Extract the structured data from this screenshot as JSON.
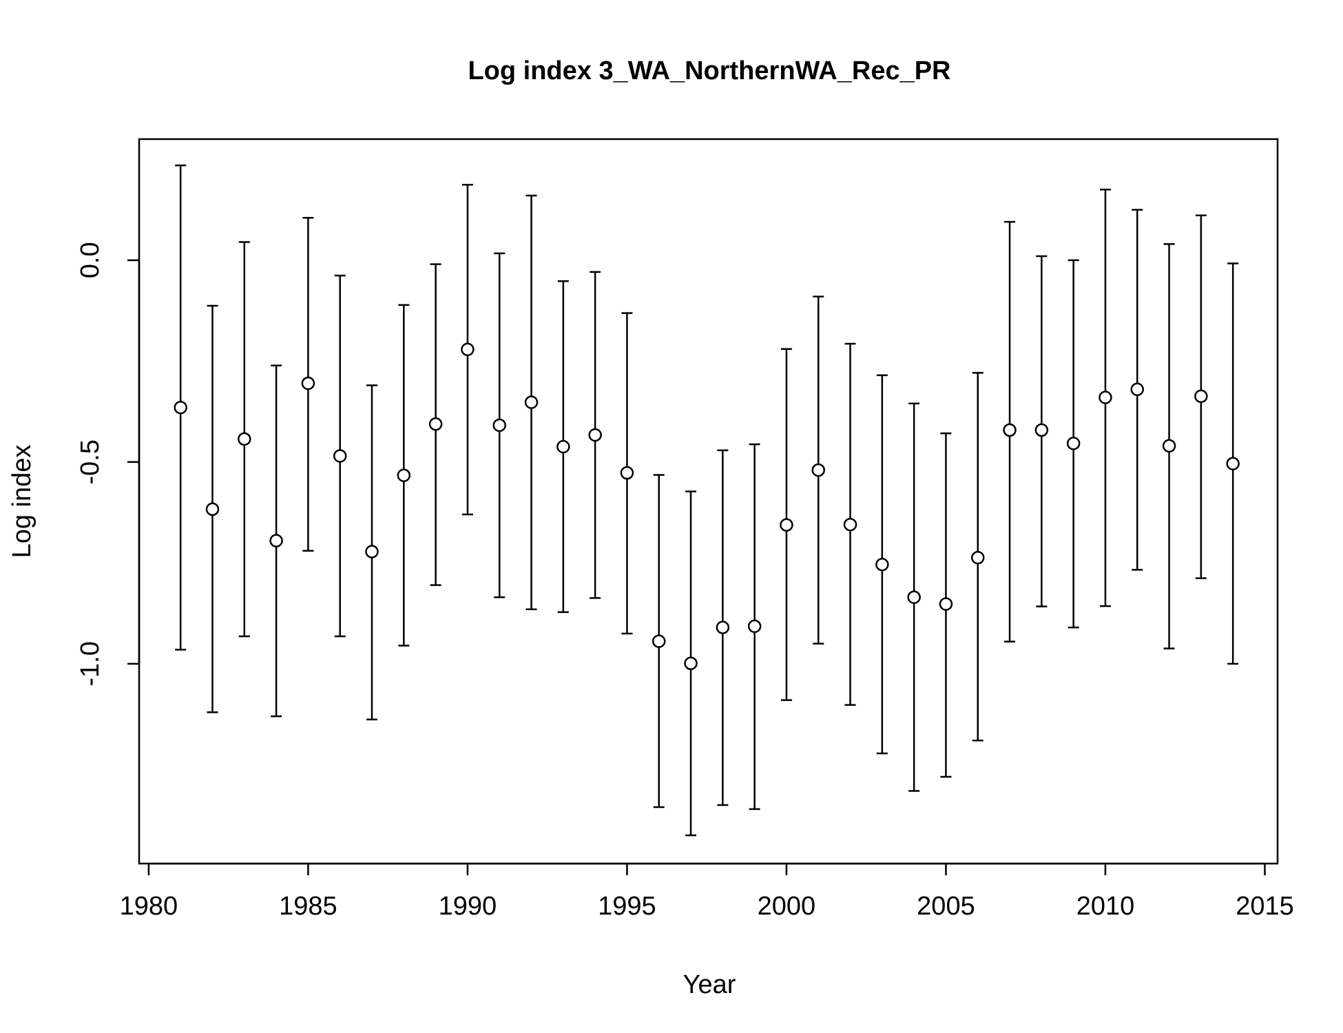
{
  "chart_data": {
    "type": "scatter",
    "title": "Log index 3_WA_NorthernWA_Rec_PR",
    "xlabel": "Year",
    "ylabel": "Log index",
    "xlim": [
      1979.7,
      2015.4
    ],
    "ylim": [
      -1.495,
      0.3
    ],
    "x_ticks": [
      1980,
      1985,
      1990,
      1995,
      2000,
      2005,
      2010,
      2015
    ],
    "y_ticks": [
      -1.0,
      -0.5,
      0.0
    ],
    "y_tick_labels": [
      "-1.0",
      "-0.5",
      "0.0"
    ],
    "grid": false,
    "legend": "none",
    "marker": "open-circle",
    "error_bars": true,
    "series": [
      {
        "points": [
          {
            "x": 1981,
            "y": -0.365,
            "lo": -0.965,
            "hi": 0.235
          },
          {
            "x": 1982,
            "y": -0.617,
            "lo": -1.12,
            "hi": -0.113
          },
          {
            "x": 1983,
            "y": -0.443,
            "lo": -0.932,
            "hi": 0.045
          },
          {
            "x": 1984,
            "y": -0.695,
            "lo": -1.13,
            "hi": -0.261
          },
          {
            "x": 1985,
            "y": -0.305,
            "lo": -0.72,
            "hi": 0.105
          },
          {
            "x": 1986,
            "y": -0.485,
            "lo": -0.932,
            "hi": -0.038
          },
          {
            "x": 1987,
            "y": -0.722,
            "lo": -1.138,
            "hi": -0.31
          },
          {
            "x": 1988,
            "y": -0.533,
            "lo": -0.955,
            "hi": -0.111
          },
          {
            "x": 1989,
            "y": -0.406,
            "lo": -0.805,
            "hi": -0.01
          },
          {
            "x": 1990,
            "y": -0.221,
            "lo": -0.63,
            "hi": 0.187
          },
          {
            "x": 1991,
            "y": -0.409,
            "lo": -0.835,
            "hi": 0.017
          },
          {
            "x": 1992,
            "y": -0.352,
            "lo": -0.865,
            "hi": 0.16
          },
          {
            "x": 1993,
            "y": -0.462,
            "lo": -0.872,
            "hi": -0.052
          },
          {
            "x": 1994,
            "y": -0.433,
            "lo": -0.837,
            "hi": -0.029
          },
          {
            "x": 1995,
            "y": -0.527,
            "lo": -0.925,
            "hi": -0.131
          },
          {
            "x": 1996,
            "y": -0.944,
            "lo": -1.355,
            "hi": -0.532
          },
          {
            "x": 1997,
            "y": -0.999,
            "lo": -1.425,
            "hi": -0.573
          },
          {
            "x": 1998,
            "y": -0.91,
            "lo": -1.35,
            "hi": -0.471
          },
          {
            "x": 1999,
            "y": -0.907,
            "lo": -1.36,
            "hi": -0.456
          },
          {
            "x": 2000,
            "y": -0.656,
            "lo": -1.09,
            "hi": -0.22
          },
          {
            "x": 2001,
            "y": -0.52,
            "lo": -0.95,
            "hi": -0.09
          },
          {
            "x": 2002,
            "y": -0.655,
            "lo": -1.102,
            "hi": -0.207
          },
          {
            "x": 2003,
            "y": -0.754,
            "lo": -1.222,
            "hi": -0.285
          },
          {
            "x": 2004,
            "y": -0.835,
            "lo": -1.315,
            "hi": -0.355
          },
          {
            "x": 2005,
            "y": -0.852,
            "lo": -1.28,
            "hi": -0.429
          },
          {
            "x": 2006,
            "y": -0.737,
            "lo": -1.19,
            "hi": -0.279
          },
          {
            "x": 2007,
            "y": -0.421,
            "lo": -0.945,
            "hi": 0.095
          },
          {
            "x": 2008,
            "y": -0.421,
            "lo": -0.858,
            "hi": 0.01
          },
          {
            "x": 2009,
            "y": -0.454,
            "lo": -0.91,
            "hi": 0.0
          },
          {
            "x": 2010,
            "y": -0.34,
            "lo": -0.857,
            "hi": 0.175
          },
          {
            "x": 2011,
            "y": -0.32,
            "lo": -0.767,
            "hi": 0.125
          },
          {
            "x": 2012,
            "y": -0.46,
            "lo": -0.962,
            "hi": 0.04
          },
          {
            "x": 2013,
            "y": -0.337,
            "lo": -0.788,
            "hi": 0.111
          },
          {
            "x": 2014,
            "y": -0.504,
            "lo": -1.0,
            "hi": -0.008
          }
        ]
      }
    ]
  }
}
